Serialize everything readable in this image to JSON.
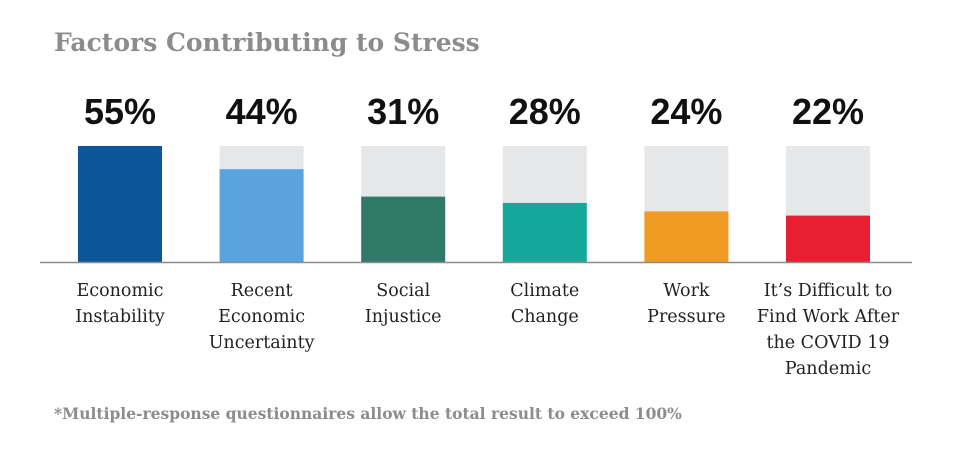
{
  "chart_data": {
    "type": "bar",
    "title": "Factors Contributing to Stress",
    "categories": [
      [
        "Economic",
        "Instability"
      ],
      [
        "Recent",
        "Economic",
        "Uncertainty"
      ],
      [
        "Social",
        "Injustice"
      ],
      [
        "Climate",
        "Change"
      ],
      [
        "Work",
        "Pressure"
      ],
      [
        "It’s Difficult to",
        "Find Work After",
        "the COVID 19",
        "Pandemic"
      ]
    ],
    "values": [
      55,
      44,
      31,
      28,
      24,
      22
    ],
    "value_labels": [
      "55%",
      "44%",
      "31%",
      "28%",
      "24%",
      "22%"
    ],
    "ylim": [
      0,
      55
    ],
    "grid": false,
    "colors": [
      "#0b5699",
      "#5aa3dc",
      "#317a6a",
      "#14a89c",
      "#f09b24",
      "#e81e32"
    ],
    "track_color": "#e6e7e8",
    "axis_color": "#8c8c8c",
    "footnote": "*Multiple-response questionnaires allow the total result to exceed 100%"
  }
}
